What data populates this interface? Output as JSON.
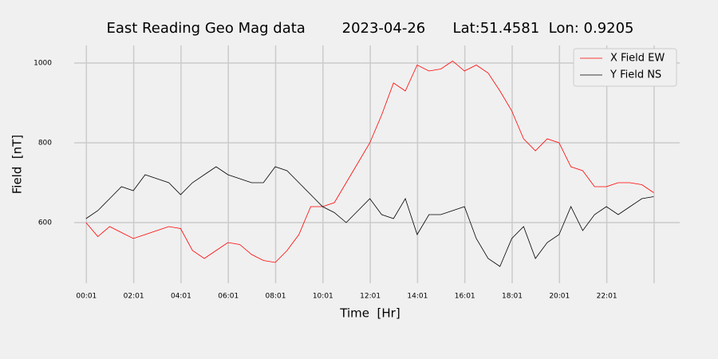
{
  "chart_data": {
    "type": "line",
    "title": "East Reading Geo Mag data        2023-04-26      Lat:51.4581  Lon: 0.9205",
    "xlabel": "Time  [Hr]",
    "ylabel": "Field  [nT]",
    "x": [
      0,
      0.5,
      1,
      1.5,
      2,
      2.5,
      3,
      3.5,
      4,
      4.5,
      5,
      5.5,
      6,
      6.5,
      7,
      7.5,
      8,
      8.5,
      9,
      9.5,
      10,
      10.5,
      11,
      11.5,
      12,
      12.5,
      13,
      13.5,
      14,
      14.5,
      15,
      15.5,
      16,
      16.5,
      17,
      17.5,
      18,
      18.5,
      19,
      19.5,
      20,
      20.5,
      21,
      21.5,
      22,
      22.5,
      23,
      23.5,
      24
    ],
    "series": [
      {
        "name": "X Field EW",
        "color": "#ff0000",
        "values": [
          600,
          565,
          590,
          575,
          560,
          570,
          580,
          590,
          585,
          530,
          510,
          530,
          550,
          545,
          520,
          505,
          500,
          530,
          570,
          640,
          640,
          650,
          700,
          750,
          800,
          870,
          950,
          930,
          995,
          980,
          985,
          1005,
          980,
          995,
          975,
          930,
          880,
          810,
          780,
          810,
          800,
          740,
          730,
          690,
          690,
          700,
          700,
          695,
          675
        ]
      },
      {
        "name": "Y Field NS",
        "color": "#000000",
        "values": [
          610,
          630,
          660,
          690,
          680,
          720,
          710,
          700,
          670,
          700,
          720,
          740,
          720,
          710,
          700,
          700,
          740,
          730,
          700,
          670,
          640,
          625,
          600,
          630,
          660,
          620,
          610,
          660,
          570,
          620,
          620,
          630,
          640,
          560,
          510,
          490,
          560,
          590,
          510,
          550,
          570,
          640,
          580,
          620,
          640,
          620,
          640,
          660,
          665
        ]
      }
    ],
    "xlim": [
      -0.5,
      25.1
    ],
    "xticks": [
      {
        "value": 0.0167,
        "label": "00:01"
      },
      {
        "value": 2.0167,
        "label": "02:01"
      },
      {
        "value": 4.0167,
        "label": "04:01"
      },
      {
        "value": 6.0167,
        "label": "06:01"
      },
      {
        "value": 8.0167,
        "label": "08:01"
      },
      {
        "value": 10.0167,
        "label": "10:01"
      },
      {
        "value": 12.0167,
        "label": "12:01"
      },
      {
        "value": 14.0167,
        "label": "14:01"
      },
      {
        "value": 16.0167,
        "label": "16:01"
      },
      {
        "value": 18.0167,
        "label": "18:01"
      },
      {
        "value": 20.0167,
        "label": "20:01"
      },
      {
        "value": 22.0167,
        "label": "22:01"
      },
      {
        "value": 24.0167,
        "label": null
      }
    ],
    "ylim": [
      448,
      1044
    ],
    "yticks": [
      600,
      800,
      1000
    ],
    "grid": true,
    "legend": "upper right"
  }
}
